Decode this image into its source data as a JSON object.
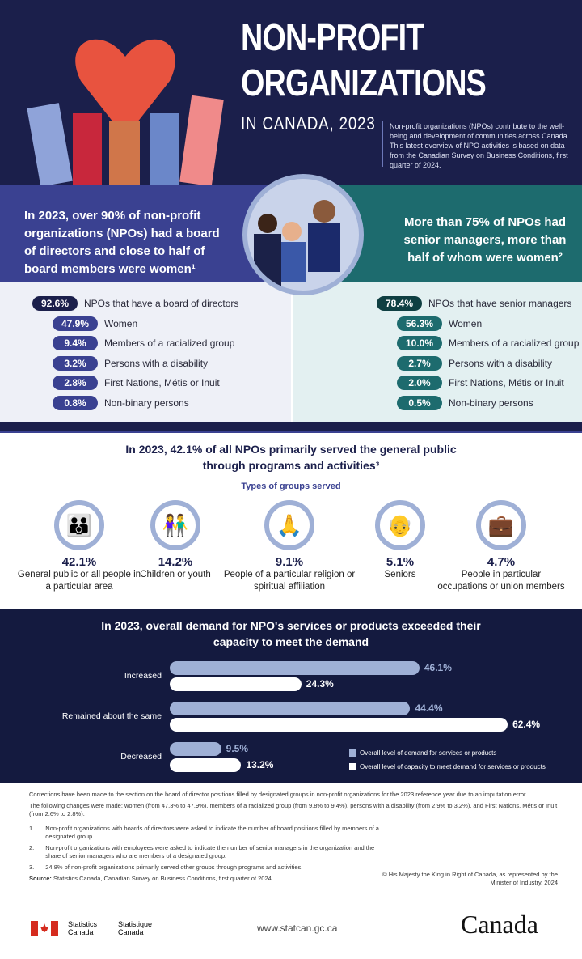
{
  "header": {
    "title_line1": "NON-PROFIT",
    "title_line2": "ORGANIZATIONS",
    "title_line3": "IN CANADA, 2023",
    "intro": "Non-profit organizations (NPOs) contribute to the well-being and development of communities across Canada. This latest overview of NPO activities is based on data from the Canadian Survey on Business Conditions, first quarter of 2024."
  },
  "board": {
    "headline": "In 2023, over 90% of non-profit organizations (NPOs) had a board of directors and close to half of board members were women¹",
    "color": "#3a4191",
    "items": [
      {
        "value": "92.6%",
        "label": "NPOs that have a board of directors"
      },
      {
        "value": "47.9%",
        "label": "Women"
      },
      {
        "value": "9.4%",
        "label": "Members of a racialized group"
      },
      {
        "value": "3.2%",
        "label": "Persons with a disability"
      },
      {
        "value": "2.8%",
        "label": "First Nations, Métis or Inuit"
      },
      {
        "value": "0.8%",
        "label": "Non-binary persons"
      }
    ]
  },
  "managers": {
    "headline": "More than 75% of NPOs had senior managers, more than half of whom were women²",
    "color": "#1d6b6e",
    "items": [
      {
        "value": "78.4%",
        "label": "NPOs that have senior managers"
      },
      {
        "value": "56.3%",
        "label": "Women"
      },
      {
        "value": "10.0%",
        "label": "Members of a racialized group"
      },
      {
        "value": "2.7%",
        "label": "Persons with a disability"
      },
      {
        "value": "2.0%",
        "label": "First Nations, Métis or Inuit"
      },
      {
        "value": "0.5%",
        "label": "Non-binary persons"
      }
    ]
  },
  "groups": {
    "headline": "In 2023, 42.1% of all NPOs primarily served the general public through programs and activities³",
    "subtitle": "Types of groups served",
    "items": [
      {
        "icon": "people-group-icon",
        "value": "42.1%",
        "label": "General public or all people in a particular area"
      },
      {
        "icon": "children-icon",
        "value": "14.2%",
        "label": "Children or youth"
      },
      {
        "icon": "praying-hands-icon",
        "value": "9.1%",
        "label": "People of a particular religion or spiritual affiliation"
      },
      {
        "icon": "seniors-icon",
        "value": "5.1%",
        "label": "Seniors"
      },
      {
        "icon": "briefcase-icon",
        "value": "4.7%",
        "label": "People in particular occupations or union members"
      }
    ]
  },
  "chart_data": {
    "type": "bar",
    "orientation": "horizontal",
    "title": "In 2023, overall demand for NPO's services or products exceeded their capacity to meet the demand",
    "categories": [
      "Increased",
      "Remained about the same",
      "Decreased"
    ],
    "series": [
      {
        "name": "Overall level of demand for services or products",
        "values": [
          46.1,
          44.4,
          9.5
        ],
        "labels": [
          "46.1%",
          "44.4%",
          "9.5%"
        ],
        "color": "#9fb0d6"
      },
      {
        "name": "Overall level of capacity to meet demand for services or products",
        "values": [
          24.3,
          62.4,
          13.2
        ],
        "labels": [
          "24.3%",
          "62.4%",
          "13.2%"
        ],
        "color": "#ffffff"
      }
    ],
    "legend": "bottom-right",
    "grid": false
  },
  "footer": {
    "correction1": "Corrections have been made to the section on the board of director positions filled by designated groups in non-profit organizations for the 2023 reference year due to an imputation error.",
    "correction2": "The following changes were made: women (from 47.3% to 47.9%), members of a racialized group (from 9.8% to 9.4%), persons with a disability (from 2.9% to 3.2%), and First Nations, Métis or Inuit (from 2.6% to 2.8%).",
    "notes": [
      {
        "n": "1.",
        "text": "Non-profit organizations with boards of directors were asked to indicate the number of board positions filled by members of a designated group."
      },
      {
        "n": "2.",
        "text": "Non-profit organizations with employees were asked to indicate the number of senior managers in the organization and the share of senior managers who are members of a designated group."
      },
      {
        "n": "3.",
        "text": "24.8% of non-profit organizations primarily served other groups through programs and activities."
      }
    ],
    "source_label": "Source:",
    "source": " Statistics Canada, Canadian Survey on Business Conditions, first quarter of 2024.",
    "copyright": "© His Majesty the King in Right of Canada, as represented by the Minister of Industry, 2024",
    "statcan_en": "Statistics Canada",
    "statcan_fr": "Statistique Canada",
    "url": "www.statcan.gc.ca",
    "wordmark": "Canada"
  }
}
